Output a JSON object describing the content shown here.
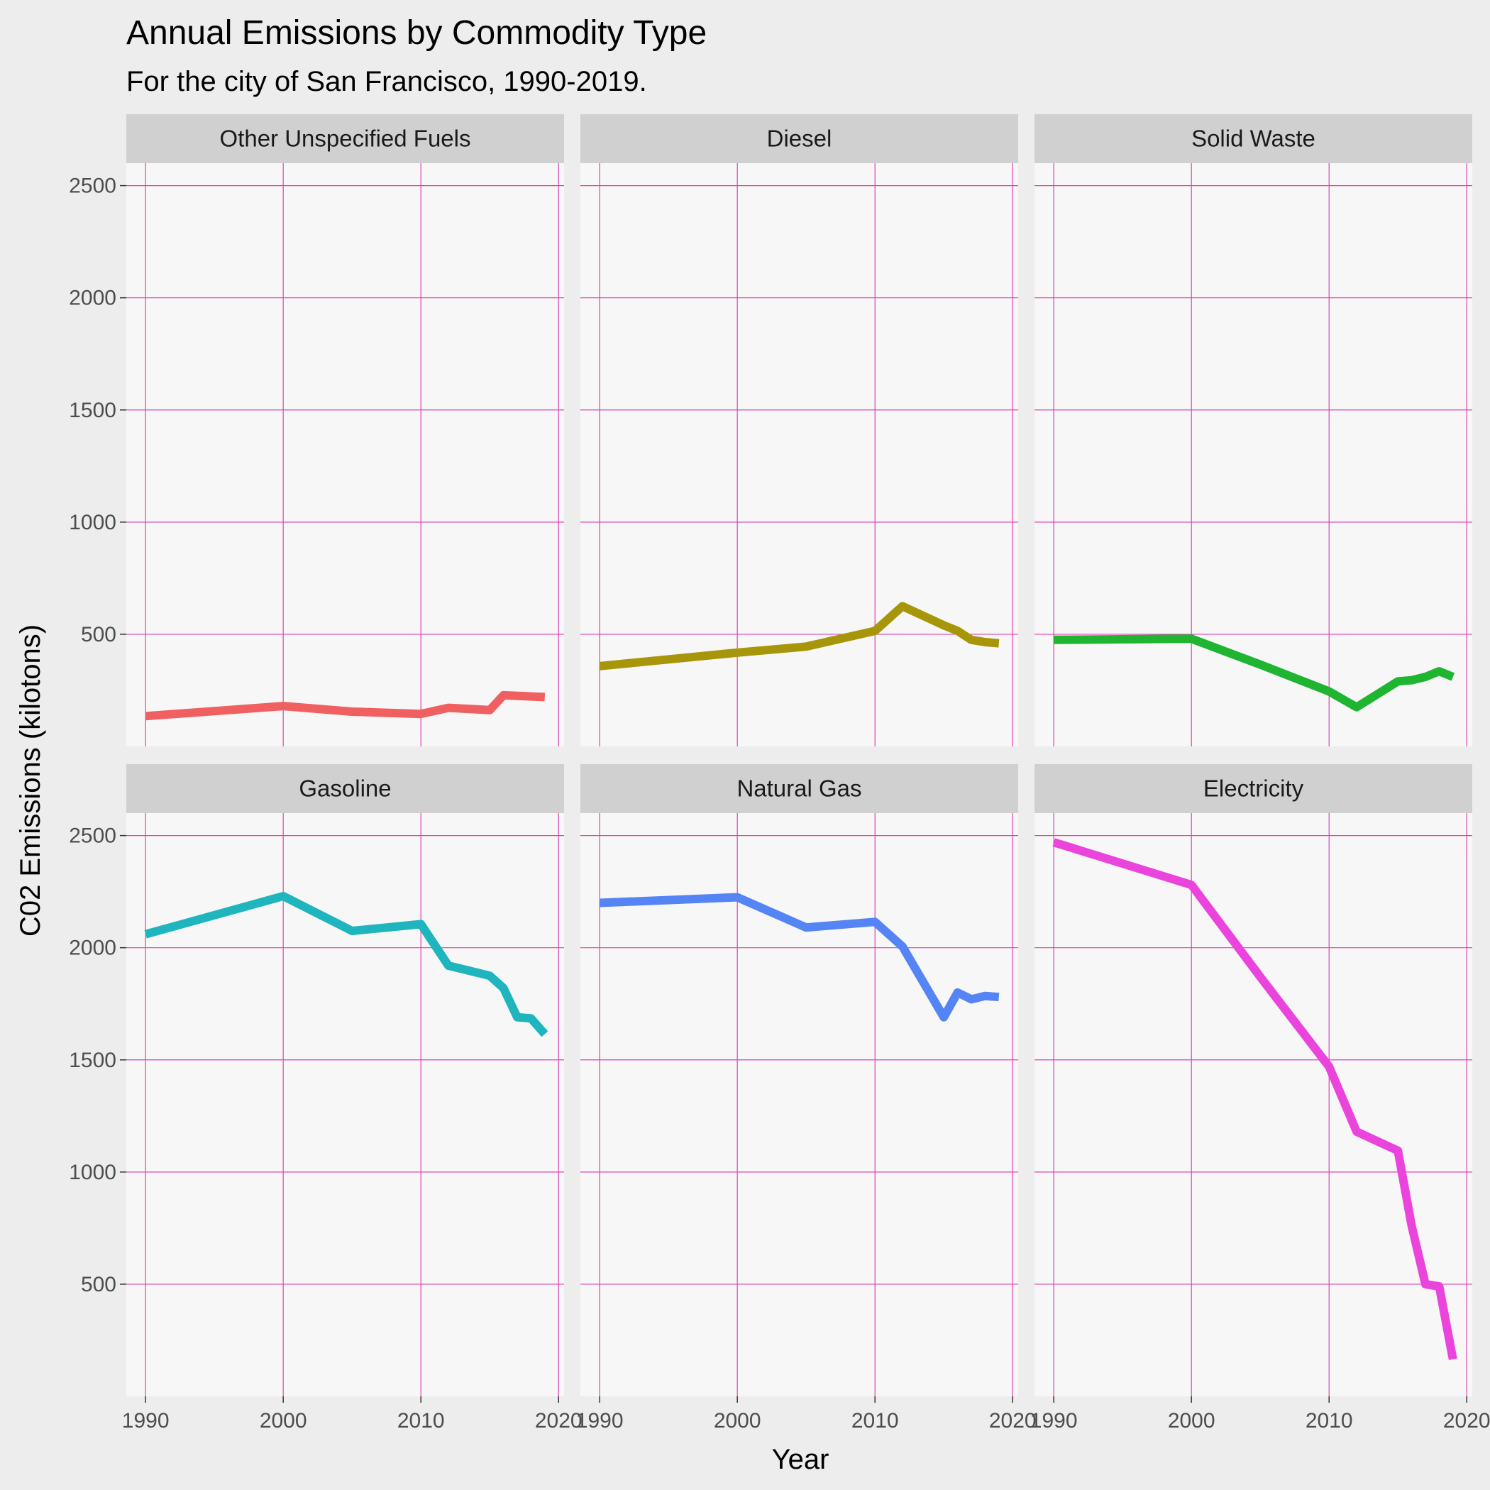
{
  "chart_data": {
    "type": "line",
    "title": "Annual Emissions by Commodity Type",
    "subtitle": "For the city of San Francisco, 1990-2019.",
    "xlabel": "Year",
    "ylabel": "C02 Emissions (kilotons)",
    "xlim": [
      1988.6,
      2020.4
    ],
    "ylim": [
      0,
      2600
    ],
    "x_ticks": [
      1990,
      2000,
      2010,
      2020
    ],
    "y_ticks": [
      500,
      1000,
      1500,
      2000,
      2500
    ],
    "grid": true,
    "grid_color": "#e040b0",
    "panel_background": "#f7f7f7",
    "strip_background": "#d0d0d0",
    "legend": "none",
    "facets": [
      {
        "name": "Other Unspecified Fuels",
        "color": "#f06060",
        "x": [
          1990,
          2000,
          2005,
          2010,
          2012,
          2015,
          2016,
          2019
        ],
        "y": [
          135,
          180,
          155,
          145,
          172,
          162,
          228,
          220
        ]
      },
      {
        "name": "Diesel",
        "color": "#a8960a",
        "x": [
          1990,
          2000,
          2005,
          2010,
          2012,
          2015,
          2016,
          2017,
          2018,
          2019
        ],
        "y": [
          358,
          418,
          445,
          515,
          625,
          540,
          515,
          475,
          465,
          460
        ]
      },
      {
        "name": "Solid Waste",
        "color": "#1fb530",
        "x": [
          1990,
          2000,
          2005,
          2010,
          2012,
          2015,
          2016,
          2017,
          2018,
          2019
        ],
        "y": [
          475,
          480,
          365,
          245,
          175,
          290,
          295,
          310,
          335,
          310
        ]
      },
      {
        "name": "Gasoline",
        "color": "#1fb5be",
        "x": [
          1990,
          2000,
          2005,
          2010,
          2012,
          2015,
          2016,
          2017,
          2018,
          2019
        ],
        "y": [
          2060,
          2230,
          2075,
          2105,
          1920,
          1875,
          1820,
          1690,
          1685,
          1615
        ]
      },
      {
        "name": "Natural Gas",
        "color": "#5584f5",
        "x": [
          1990,
          2000,
          2005,
          2010,
          2012,
          2015,
          2016,
          2017,
          2018,
          2019
        ],
        "y": [
          2200,
          2225,
          2090,
          2115,
          2005,
          1690,
          1800,
          1770,
          1785,
          1780
        ]
      },
      {
        "name": "Electricity",
        "color": "#ea44dc",
        "x": [
          1990,
          2000,
          2005,
          2010,
          2012,
          2015,
          2016,
          2017,
          2018,
          2019
        ],
        "y": [
          2470,
          2280,
          1870,
          1470,
          1180,
          1095,
          760,
          500,
          490,
          165
        ]
      }
    ]
  }
}
